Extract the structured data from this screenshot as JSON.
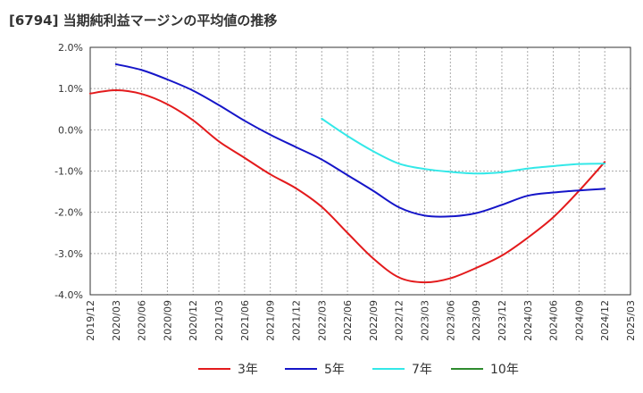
{
  "title": "[6794]  当期純利益マージンの平均値の推移",
  "chart_data": {
    "type": "line",
    "title": "[6794]  当期純利益マージンの平均値の推移",
    "xlabel": "",
    "ylabel": "",
    "ylim": [
      -4.0,
      2.0
    ],
    "yticks": [
      "2.0%",
      "1.0%",
      "0.0%",
      "-1.0%",
      "-2.0%",
      "-3.0%",
      "-4.0%"
    ],
    "ytick_values": [
      2.0,
      1.0,
      0.0,
      -1.0,
      -2.0,
      -3.0,
      -4.0
    ],
    "xlim": [
      "2019/12",
      "2025/03"
    ],
    "xticks": [
      "2019/12",
      "2020/03",
      "2020/06",
      "2020/09",
      "2020/12",
      "2021/03",
      "2021/06",
      "2021/09",
      "2021/12",
      "2022/03",
      "2022/06",
      "2022/09",
      "2022/12",
      "2023/03",
      "2023/06",
      "2023/09",
      "2023/12",
      "2024/03",
      "2024/06",
      "2024/09",
      "2024/12",
      "2025/03"
    ],
    "grid": true,
    "legend_position": "bottom",
    "series": [
      {
        "name": "3年",
        "color": "#e31a1c",
        "x": [
          "2019/12",
          "2020/03",
          "2020/06",
          "2020/09",
          "2020/12",
          "2021/03",
          "2021/06",
          "2021/09",
          "2021/12",
          "2022/03",
          "2022/06",
          "2022/09",
          "2022/12",
          "2023/03",
          "2023/06",
          "2023/09",
          "2023/12",
          "2024/03",
          "2024/06",
          "2024/09",
          "2024/12"
        ],
        "values": [
          0.88,
          0.96,
          0.87,
          0.62,
          0.23,
          -0.28,
          -0.68,
          -1.08,
          -1.42,
          -1.87,
          -2.5,
          -3.12,
          -3.58,
          -3.7,
          -3.6,
          -3.35,
          -3.05,
          -2.62,
          -2.12,
          -1.48,
          -0.78
        ]
      },
      {
        "name": "5年",
        "color": "#1515c8",
        "x": [
          "2020/03",
          "2020/06",
          "2020/09",
          "2020/12",
          "2021/03",
          "2021/06",
          "2021/09",
          "2021/12",
          "2022/03",
          "2022/06",
          "2022/09",
          "2022/12",
          "2023/03",
          "2023/06",
          "2023/09",
          "2023/12",
          "2024/03",
          "2024/06",
          "2024/09",
          "2024/12"
        ],
        "values": [
          1.59,
          1.45,
          1.22,
          0.95,
          0.6,
          0.22,
          -0.12,
          -0.42,
          -0.72,
          -1.1,
          -1.48,
          -1.88,
          -2.08,
          -2.1,
          -2.02,
          -1.82,
          -1.6,
          -1.52,
          -1.47,
          -1.43
        ]
      },
      {
        "name": "7年",
        "color": "#33e8e8",
        "x": [
          "2022/03",
          "2022/06",
          "2022/09",
          "2022/12",
          "2023/03",
          "2023/06",
          "2023/09",
          "2023/12",
          "2024/03",
          "2024/06",
          "2024/09",
          "2024/12"
        ],
        "values": [
          0.27,
          -0.15,
          -0.52,
          -0.82,
          -0.95,
          -1.02,
          -1.06,
          -1.03,
          -0.94,
          -0.88,
          -0.83,
          -0.82
        ]
      },
      {
        "name": "10年",
        "color": "#2e8b2e",
        "x": [],
        "values": []
      }
    ]
  }
}
